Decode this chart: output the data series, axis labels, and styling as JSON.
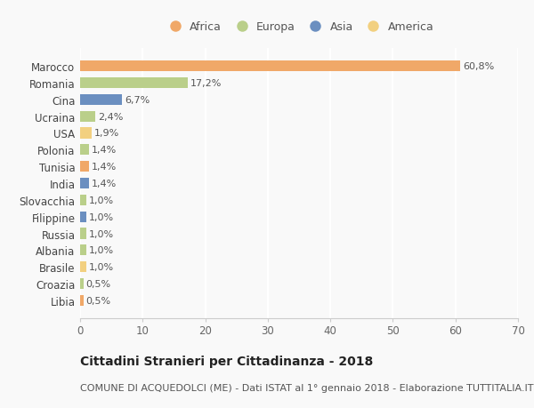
{
  "categories": [
    "Libia",
    "Croazia",
    "Brasile",
    "Albania",
    "Russia",
    "Filippine",
    "Slovacchia",
    "India",
    "Tunisia",
    "Polonia",
    "USA",
    "Ucraina",
    "Cina",
    "Romania",
    "Marocco"
  ],
  "values": [
    0.5,
    0.5,
    1.0,
    1.0,
    1.0,
    1.0,
    1.0,
    1.4,
    1.4,
    1.4,
    1.9,
    2.4,
    6.7,
    17.2,
    60.8
  ],
  "labels": [
    "0,5%",
    "0,5%",
    "1,0%",
    "1,0%",
    "1,0%",
    "1,0%",
    "1,0%",
    "1,4%",
    "1,4%",
    "1,4%",
    "1,9%",
    "2,4%",
    "6,7%",
    "17,2%",
    "60,8%"
  ],
  "continents": [
    "Africa",
    "Europa",
    "America",
    "Europa",
    "Europa",
    "Asia",
    "Europa",
    "Asia",
    "Africa",
    "Europa",
    "America",
    "Europa",
    "Asia",
    "Europa",
    "Africa"
  ],
  "continent_colors": {
    "Africa": "#F0A868",
    "Europa": "#BACF8A",
    "Asia": "#6B8FC0",
    "America": "#F2D080"
  },
  "title": "Cittadini Stranieri per Cittadinanza - 2018",
  "subtitle": "COMUNE DI ACQUEDOLCI (ME) - Dati ISTAT al 1° gennaio 2018 - Elaborazione TUTTITALIA.IT",
  "xlim": [
    0,
    70
  ],
  "xticks": [
    0,
    10,
    20,
    30,
    40,
    50,
    60,
    70
  ],
  "background_color": "#f9f9f9",
  "bar_alpha": 1.0,
  "title_fontsize": 10,
  "subtitle_fontsize": 8,
  "tick_fontsize": 8.5,
  "label_fontsize": 8,
  "legend_fontsize": 9
}
